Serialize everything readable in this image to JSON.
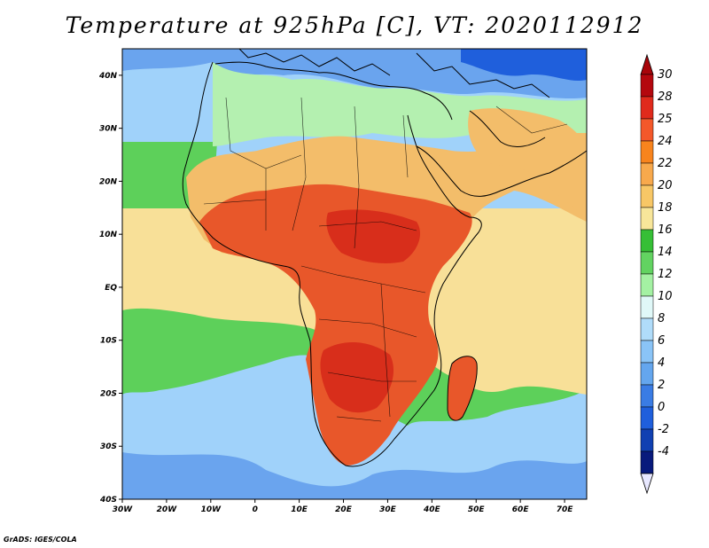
{
  "title": "Temperature at 925hPa [C], VT: 2020112912",
  "credit": "GrADS: IGES/COLA",
  "map": {
    "lon_range": [
      -30,
      75
    ],
    "lat_range": [
      -40,
      45
    ],
    "lat_ticks": [
      {
        "value": 40,
        "label": "40N"
      },
      {
        "value": 30,
        "label": "30N"
      },
      {
        "value": 20,
        "label": "20N"
      },
      {
        "value": 10,
        "label": "10N"
      },
      {
        "value": 0,
        "label": "EQ"
      },
      {
        "value": -10,
        "label": "10S"
      },
      {
        "value": -20,
        "label": "20S"
      },
      {
        "value": -30,
        "label": "30S"
      },
      {
        "value": -40,
        "label": "40S"
      }
    ],
    "lon_ticks": [
      {
        "value": -30,
        "label": "30W"
      },
      {
        "value": -20,
        "label": "20W"
      },
      {
        "value": -10,
        "label": "10W"
      },
      {
        "value": 0,
        "label": "0"
      },
      {
        "value": 10,
        "label": "10E"
      },
      {
        "value": 20,
        "label": "20E"
      },
      {
        "value": 30,
        "label": "30E"
      },
      {
        "value": 40,
        "label": "40E"
      },
      {
        "value": 50,
        "label": "50E"
      },
      {
        "value": 60,
        "label": "60E"
      },
      {
        "value": 70,
        "label": "70E"
      }
    ],
    "colors": {
      "ocean_south": "#a0d2fa",
      "ocean_far_south": "#6aa4ee",
      "ocean_green": "#5dd05a",
      "ocean_tropical": "#f8e098",
      "sahara": "#f3bd6a",
      "land_hot": "#e8572a",
      "land_hotter": "#d82e1b",
      "mediterranean": "#b4f0b0",
      "europe_cold": "#6aa4ee",
      "europe_colder": "#1f5fdc",
      "coast": "#000000"
    }
  },
  "colorbar": {
    "levels": [
      "30",
      "28",
      "25",
      "24",
      "22",
      "20",
      "18",
      "16",
      "14",
      "12",
      "10",
      "8",
      "6",
      "4",
      "2",
      "0",
      "-2",
      "-4"
    ],
    "colors": [
      "#b4080e",
      "#e02a1c",
      "#f4582a",
      "#f8841d",
      "#f8a94c",
      "#f8c766",
      "#f8e69a",
      "#36bf36",
      "#62d361",
      "#a4f1a3",
      "#e0f8f8",
      "#b0dcfa",
      "#8ac4f7",
      "#64a6ee",
      "#3a7ce4",
      "#1f5fdc",
      "#1040b2",
      "#081a7c"
    ],
    "under_color": "#e8e8ff",
    "over_color": "#a8050a"
  }
}
